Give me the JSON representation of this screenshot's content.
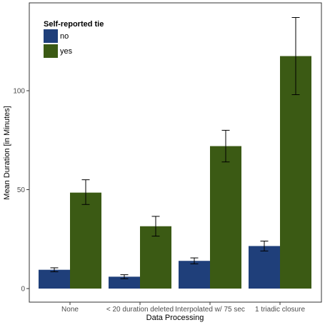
{
  "chart_data": {
    "type": "bar",
    "xlabel": "Data Processing",
    "ylabel": "Mean Duration [in Minutes]",
    "ylim": [
      0,
      137
    ],
    "yticks": [
      0,
      50,
      100
    ],
    "grid": false,
    "legend": {
      "title": "Self-reported tie",
      "placement": "top-left",
      "entries": [
        "no",
        "yes"
      ]
    },
    "categories": [
      "None",
      "< 20 duration deleted",
      "Interpolated w/ 75 sec",
      "1 triadic closure"
    ],
    "series": [
      {
        "name": "no",
        "color": "#1f3f7a",
        "values": [
          9.5,
          6,
          14,
          21.5
        ],
        "err_low": [
          8.5,
          5,
          12.5,
          19
        ],
        "err_high": [
          10.5,
          7,
          15.5,
          24
        ]
      },
      {
        "name": "yes",
        "color": "#3b5a14",
        "values": [
          48.5,
          31.5,
          72,
          117.5
        ],
        "err_low": [
          42.5,
          26.5,
          64,
          98
        ],
        "err_high": [
          55,
          36.5,
          80,
          137
        ]
      }
    ]
  }
}
